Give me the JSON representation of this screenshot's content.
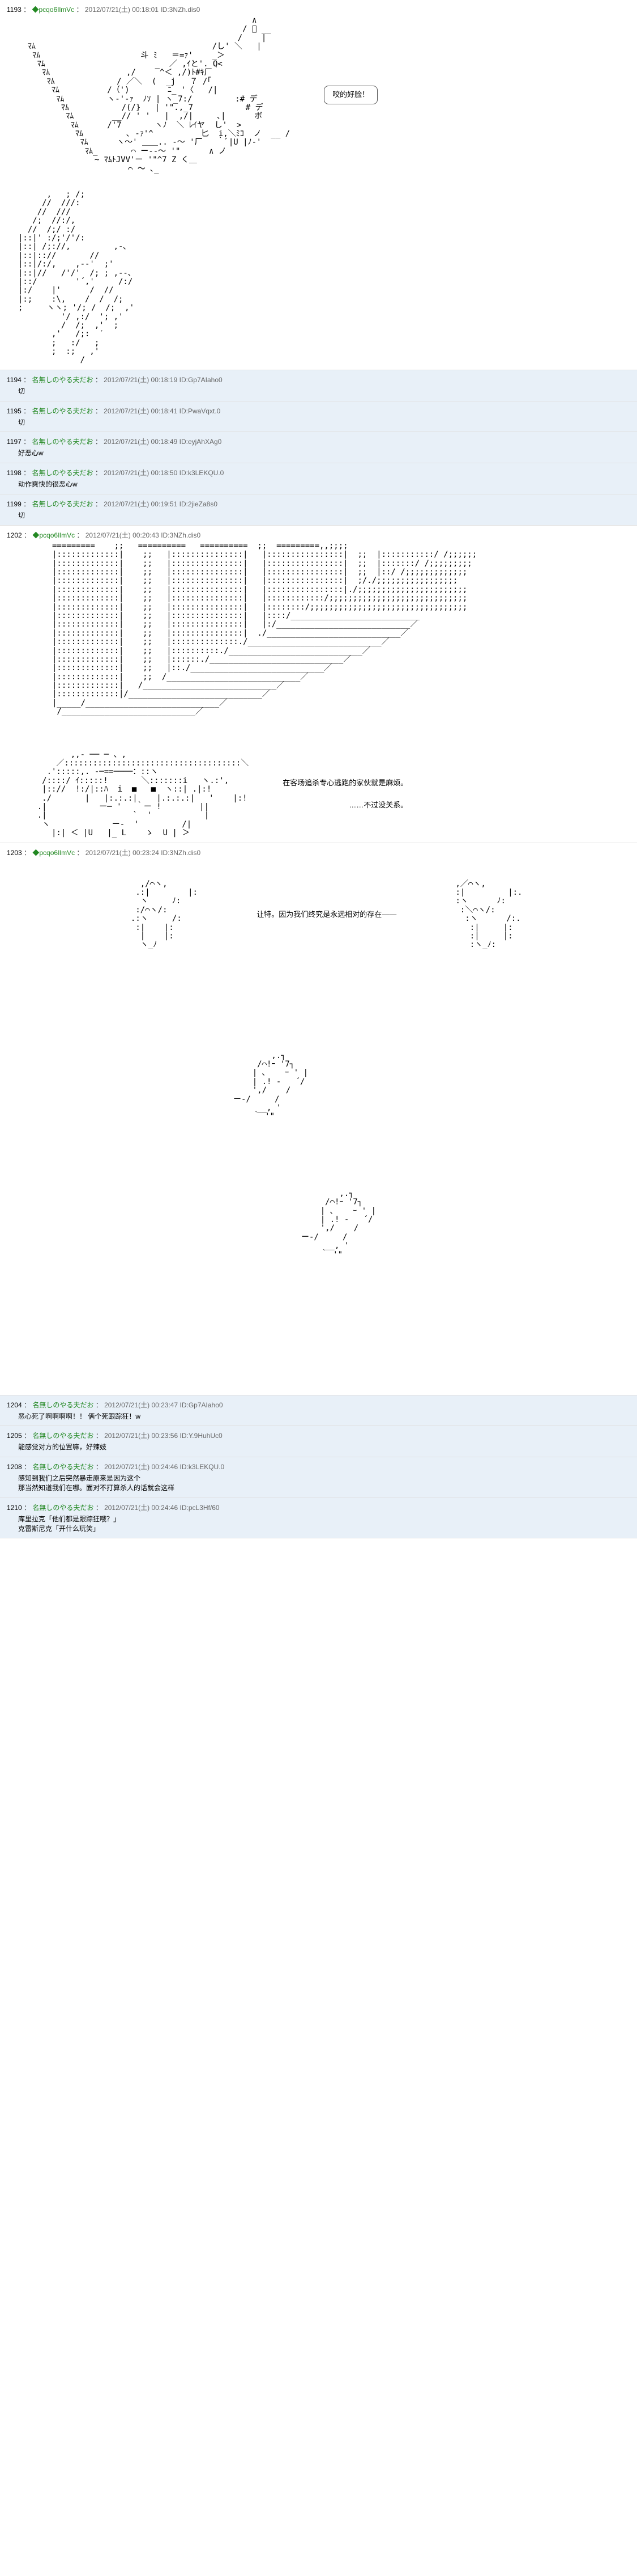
{
  "posts": [
    {
      "num": "1193",
      "name": "◆pcqo6IlmVc",
      "date": "2012/07/21(土) 00:18:01",
      "id": "ID:3NZh.dis0",
      "bg": "white",
      "type": "aa1",
      "bubble": "咬的好脸！",
      "aa_top": "                                                 ∧\n                                               / ﾟ __\n                                              /    |\n  ﾏﾑ                                     /し' ＼   |\n   ﾏﾑ                     斗 ﾐ   ＝=ｧ'    _＞\n    ﾏﾑ                       _  ／ ,ｲと'. Q<\n     ﾏﾑ                ,/     ^＜ ,/)ﾄ#ｷ厂\n      ﾏﾑ             / ／＼  (  _j   ７ /｢\n       ﾏﾑ          /（')        ﾆ_ '〈   /|\n        ﾏﾑ         ヽ-'-ｧ  ﾉｿ | ヽ_7:/         :# デ\n         ﾏﾑ           /(/}   | '\".,_7           # デ\n          ﾏﾑ        __// ' '   |  ,/|     ､|      ボ\n           ﾏﾑ      /'7       ヽﾉ  ＼ ﾚｲヤ  し'  >\n            ﾏﾑ         ､ -ｧ'^          匕  i,＼ﾐｺ  ノ  __ /\n             ﾏﾑ      ヽ～' ＿＿.. -～ '厂   ｀ﾞ|U |ﾉ-'\n              ﾏﾑ_       ⌒ ー--～ '\"      ∧ ノ\n                ~ ﾏﾑﾄJVV'ー '\"^7 Z く＿\n                       ⌒ ～ ､_",
      "aa_bottom": "      ,   ; /;\n     //  ///:\n    //  ///\n   /;  //:/,\n  //  /;/ :/\n|::|' :/;'/'/:\n|::| /;://,         ,-､\n|::|:://       //\n|::|/:/,    ,--'  ;'\n|::|//   /'/'  /; ; ,--､\n|::/        '´,'     /:/\n|:/    |'      /  //\n|:;    :\\,    /  /  /;\n;     ヽヽ; '/; /  /;  ,'\n         '/ ,:/  '; ,'\n         /  /;  ,'  ;\n       ,'   /;:  ′\n       ;   :/   ;\n       ;  :;   ,'\n             /"
    },
    {
      "num": "1194",
      "name": "名無しのやる夫だお",
      "date": "2012/07/21(土) 00:18:19",
      "id": "ID:Gp7AIaho0",
      "bg": "blue",
      "body": "切"
    },
    {
      "num": "1195",
      "name": "名無しのやる夫だお",
      "date": "2012/07/21(土) 00:18:41",
      "id": "ID:PwaVqxt.0",
      "bg": "blue",
      "body": "切"
    },
    {
      "num": "1197",
      "name": "名無しのやる夫だお",
      "date": "2012/07/21(土) 00:18:49",
      "id": "ID:eyjAhXAg0",
      "bg": "blue",
      "body": "好恶心w"
    },
    {
      "num": "1198",
      "name": "名無しのやる夫だお",
      "date": "2012/07/21(土) 00:18:50",
      "id": "ID:k3LEKQU.0",
      "bg": "blue",
      "body": "动作爽快的很恶心w"
    },
    {
      "num": "1199",
      "name": "名無しのやる夫だお",
      "date": "2012/07/21(土) 00:19:51",
      "id": "ID:2jieZa8s0",
      "bg": "blue",
      "body": "切"
    },
    {
      "num": "1202",
      "name": "◆pcqo6IlmVc",
      "date": "2012/07/21(土) 00:20:43",
      "id": "ID:3NZh.dis0",
      "bg": "white",
      "type": "aa2",
      "aa_top": "=========    ;;   ==========   ==========  ;;  =========,,;;;;\n|:::::::::::::|    ;;   |:::::::::::::::|   |::::::::::::::::|  ;;  |:::::::::::/ /;;;;;;\n|:::::::::::::|    ;;   |:::::::::::::::|   |::::::::::::::::|  ;;  |:::::::/ /;;;;;;;;;\n|:::::::::::::|    ;;   |:::::::::::::::|   |::::::::::::::::|  ;;  |::/ /;;;;;;;;;;;;;\n|:::::::::::::|    ;;   |:::::::::::::::|   |::::::::::::::::|  ;/./;;;;;;;;;;;;;;;;;\n|:::::::::::::|    ;;   |:::::::::::::::|   |::::::::::::::::|./;;;;;;;;;;;;;;;;;;;;;;;\n|:::::::::::::|    ;;   |:::::::::::::::|   |::::::::::::/;;;;;;;;;;;;;;;;;;;;;;;;;;;;;\n|:::::::::::::|    ;;   |:::::::::::::::|   |::::::::/;;;;;;;;;;;;;;;;;;;;;;;;;;;;;;;;;\n|:::::::::::::|    ;;   |:::::::::::::::|   |::::/___________________________\n|:::::::::::::|    ;;   |:::::::::::::::|   |:/____________________________／\n|:::::::::::::|    ;;   |:::::::::::::::|  ./____________________________／\n|:::::::::::::|    ;;   |::::::::::::::./____________________________／\n|:::::::::::::|    ;;   |::::::::::./____________________________／\n|:::::::::::::|    ;;   |::::::./____________________________／\n|:::::::::::::|    ;;   |::./____________________________／\n|:::::::::::::|    ;;  /____________________________／\n|:::::::::::::|   /____________________________／\n|:::::::::::::|/____________________________／\n|_____/____________________________／\n /____________________________／",
      "text1": "在客场追杀专心逃跑的家伙就是麻烦。",
      "text2": "……不过没关系。",
      "aa_bottom": "           ,,- ── ─ 、,\n        ／:::::::::::::::::::::::::::::::::::::＼\n      .':::::,. -─==────：::ヽ\n     /::::/ ｲ:::::!       ＼:::::::i   ヽ.:',\n     |:://  !:/|::ﾊ  i  ■   ■  ヽ::| .|:!\n     ./       |   |:.:.:|    |.:.:.:|   '    |:!\n    .|           ー─ '   ｀ー !        ||\n    .|                  `  '           |\n     ヽ             ー-  '         /|\n       |:| ＜ |U   |_ L    ゝ  U | ＞"
    },
    {
      "num": "1203",
      "name": "◆pcqo6IlmVc",
      "date": "2012/07/21(土) 00:23:24",
      "id": "ID:3NZh.dis0",
      "bg": "white",
      "type": "aa3",
      "text1": "让特。因为我们终究是永远相对的存在——",
      "aa_left": "   ,/⌒ヽ,\n  .:|        |:\n   ヽ     ﾉ:\n  :/⌒ヽ/:\n .:ヽ     /:\n  :|    |:\n   |    |:\n   ヽ_ﾉ",
      "aa_right": ",／⌒ヽ,\n:|         |:.\n:ヽ      ﾉ:\n :＼⌒ヽ/:\n  :ヽ      /:.\n   :|     |:\n   :|     |:\n   :ヽ_ﾉ:",
      "aa_dead1": "        ,.┐\n     /⌒!ｰ '7┐\n    | ､    ｰ ' |\n    | .! -   ´/\n    ',/    /\nー-/     /\n     __, '\n    ｀ '\"",
      "aa_dead2": "        ,.┐\n     /⌒!ｰ '7┐\n    | ､    ｰ ' |\n    | .! -   ´/\n    ',/    /\nー-/     /\n     __, '\n    ｀ '\""
    },
    {
      "num": "1204",
      "name": "名無しのやる夫だお",
      "date": "2012/07/21(土) 00:23:47",
      "id": "ID:Gp7AIaho0",
      "bg": "blue",
      "body": "恶心死了啊啊啊啊！！  俩个死跟踪狂！w"
    },
    {
      "num": "1205",
      "name": "名無しのやる夫だお",
      "date": "2012/07/21(土) 00:23:56",
      "id": "ID:Y.9HuhUc0",
      "bg": "blue",
      "body": "能感觉对方的位置嘛，好辣妓"
    },
    {
      "num": "1208",
      "name": "名無しのやる夫だお",
      "date": "2012/07/21(土) 00:24:46",
      "id": "ID:k3LEKQU.0",
      "bg": "blue",
      "body": "感知到我们之后突然暴走原来是因为这个\n那当然知道我们在哪。面对不打算杀人的话就会这样"
    },
    {
      "num": "1210",
      "name": "名無しのやる夫だお",
      "date": "2012/07/21(土) 00:24:46",
      "id": "ID:pcL3Hf/60",
      "bg": "blue",
      "body": "库里拉克「他们都是跟踪狂哦？」\n  克雷斯尼克「开什么玩笑」"
    }
  ]
}
